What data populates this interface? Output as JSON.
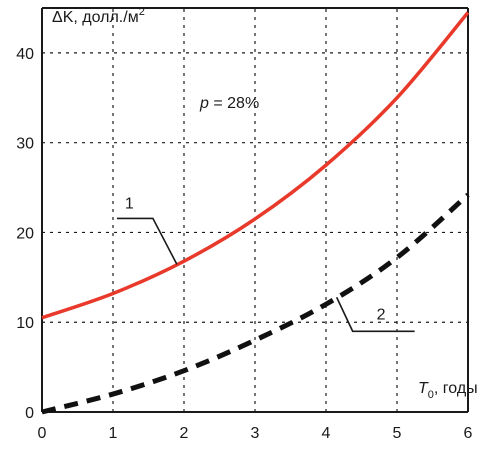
{
  "chart_data": {
    "type": "line",
    "title": "",
    "xlabel_main": "T",
    "xlabel_sub": "0",
    "xlabel_rest": ", годы",
    "ylabel": "ΔK, долл./м",
    "ylabel_sup": "2",
    "annotation": {
      "p_var": "p",
      "p_rest": " = 28%"
    },
    "xlim": [
      0,
      6
    ],
    "ylim": [
      0,
      45
    ],
    "x_ticks": [
      "0",
      "1",
      "2",
      "3",
      "4",
      "5",
      "6"
    ],
    "y_ticks": [
      "0",
      "10",
      "20",
      "30",
      "40"
    ],
    "grid": true,
    "series": [
      {
        "name": "1",
        "style": "solid",
        "color": "#e8392a",
        "x": [
          0,
          1,
          2,
          3,
          4,
          5,
          6
        ],
        "y": [
          10.5,
          13.2,
          16.8,
          21.5,
          27.5,
          35.0,
          44.5
        ]
      },
      {
        "name": "2",
        "style": "dashed",
        "color": "#111111",
        "x": [
          0,
          1,
          2,
          3,
          4,
          5,
          6
        ],
        "y": [
          0,
          2.0,
          4.6,
          8.0,
          12.0,
          17.2,
          24.2
        ]
      }
    ],
    "series_labels": [
      {
        "text": "1",
        "leader_x": 1.9,
        "label_at": "left-above"
      },
      {
        "text": "2",
        "leader_x": 4.15,
        "label_at": "right-below"
      }
    ]
  }
}
